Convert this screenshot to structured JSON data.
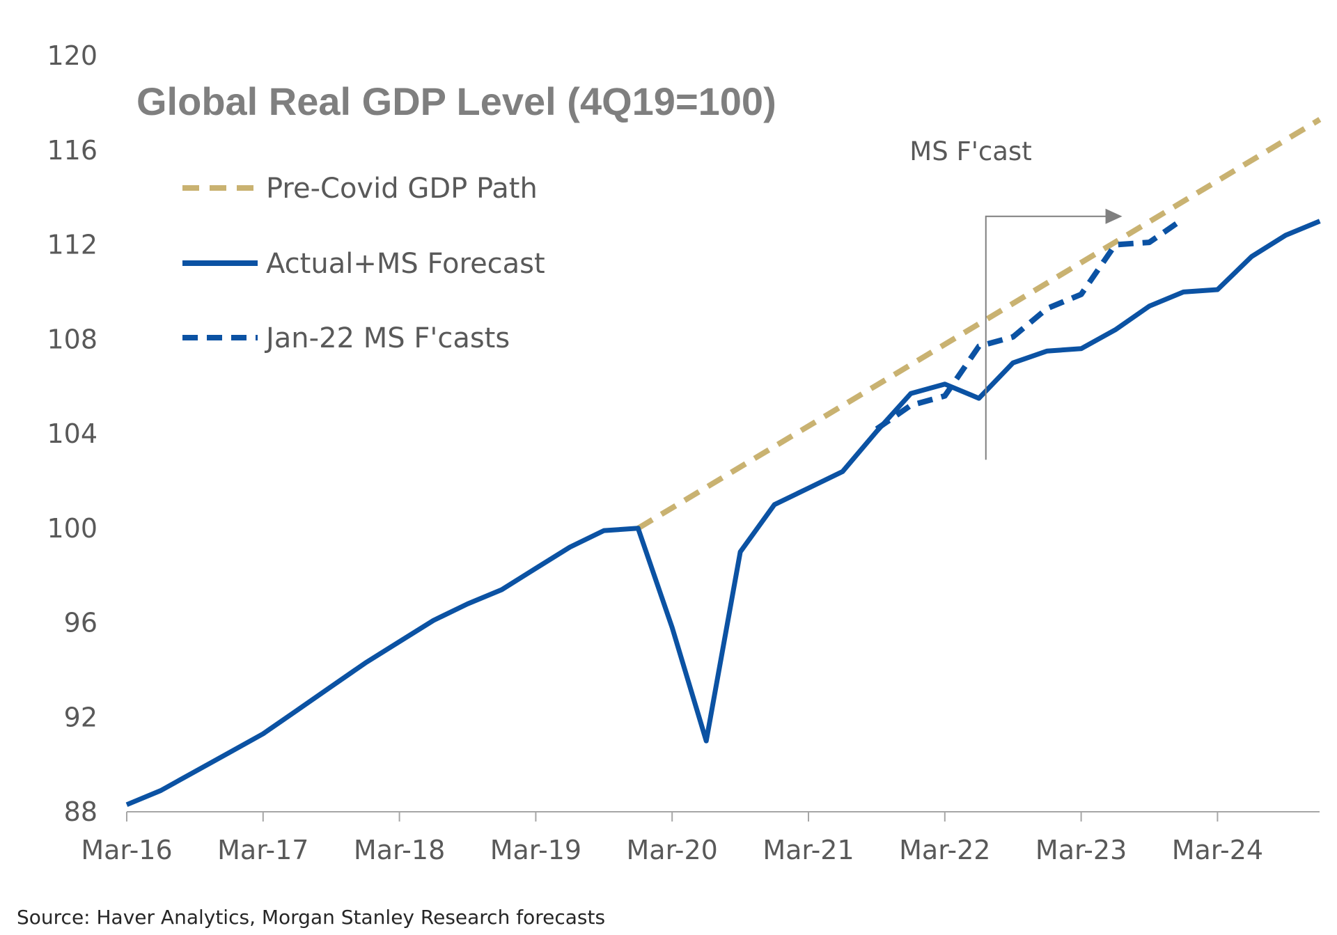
{
  "chart_data": {
    "type": "line",
    "title": "Global Real GDP Level (4Q19=100)",
    "xlabel": "",
    "ylabel": "",
    "ylim": [
      88,
      120
    ],
    "y_ticks": [
      88,
      92,
      96,
      100,
      104,
      108,
      112,
      116,
      120
    ],
    "x_ticks": [
      "Mar-16",
      "Mar-17",
      "Mar-18",
      "Mar-19",
      "Mar-20",
      "Mar-21",
      "Mar-22",
      "Mar-23",
      "Mar-24"
    ],
    "x_quarters": [
      "Mar-16",
      "Jun-16",
      "Sep-16",
      "Dec-16",
      "Mar-17",
      "Jun-17",
      "Sep-17",
      "Dec-17",
      "Mar-18",
      "Jun-18",
      "Sep-18",
      "Dec-18",
      "Mar-19",
      "Jun-19",
      "Sep-19",
      "Dec-19",
      "Mar-20",
      "Jun-20",
      "Sep-20",
      "Dec-20",
      "Mar-21",
      "Jun-21",
      "Sep-21",
      "Dec-21",
      "Mar-22",
      "Jun-22",
      "Sep-22",
      "Dec-22",
      "Mar-23",
      "Jun-23",
      "Sep-23",
      "Dec-23",
      "Mar-24",
      "Jun-24",
      "Sep-24",
      "Dec-24"
    ],
    "series": [
      {
        "name": "Pre-Covid GDP Path",
        "color": "#c9b271",
        "style": "dashed",
        "x": [
          "Dec-19",
          "Dec-24"
        ],
        "values": [
          100.0,
          117.3
        ]
      },
      {
        "name": "Actual+MS Forecast",
        "color": "#0b52a3",
        "style": "solid",
        "x": [
          "Mar-16",
          "Jun-16",
          "Sep-16",
          "Dec-16",
          "Mar-17",
          "Jun-17",
          "Sep-17",
          "Dec-17",
          "Mar-18",
          "Jun-18",
          "Sep-18",
          "Dec-18",
          "Mar-19",
          "Jun-19",
          "Sep-19",
          "Dec-19",
          "Mar-20",
          "Jun-20",
          "Sep-20",
          "Dec-20",
          "Mar-21",
          "Jun-21",
          "Sep-21",
          "Dec-21",
          "Mar-22",
          "Jun-22",
          "Sep-22",
          "Dec-22",
          "Mar-23",
          "Jun-23",
          "Sep-23",
          "Dec-23",
          "Mar-24",
          "Jun-24",
          "Sep-24",
          "Dec-24"
        ],
        "values": [
          88.3,
          88.9,
          89.7,
          90.5,
          91.3,
          92.3,
          93.3,
          94.3,
          95.2,
          96.1,
          96.8,
          97.4,
          98.3,
          99.2,
          99.9,
          100.0,
          95.8,
          91.0,
          99.0,
          101.0,
          101.7,
          102.4,
          104.1,
          105.7,
          106.1,
          105.5,
          107.0,
          107.5,
          107.6,
          108.4,
          109.4,
          110.0,
          110.1,
          111.5,
          112.4,
          113.0
        ]
      },
      {
        "name": "Jan-22 MS F'casts",
        "color": "#0b52a3",
        "style": "dashed",
        "x": [
          "Sep-21",
          "Dec-21",
          "Mar-22",
          "Jun-22",
          "Sep-22",
          "Dec-22",
          "Mar-23",
          "Jun-23",
          "Sep-23",
          "Dec-23"
        ],
        "values": [
          104.2,
          105.2,
          105.6,
          107.7,
          108.1,
          109.3,
          109.9,
          112.0,
          112.1,
          113.1
        ]
      }
    ],
    "legend_position": "top-left",
    "grid": false,
    "annotation": {
      "text": "MS F'cast",
      "at": "Jun-22",
      "y_bottom": 102.9,
      "y_top": 113.2,
      "arrow_to": "Jun-23"
    },
    "source": "Source: Haver Analytics, Morgan Stanley Research forecasts"
  }
}
